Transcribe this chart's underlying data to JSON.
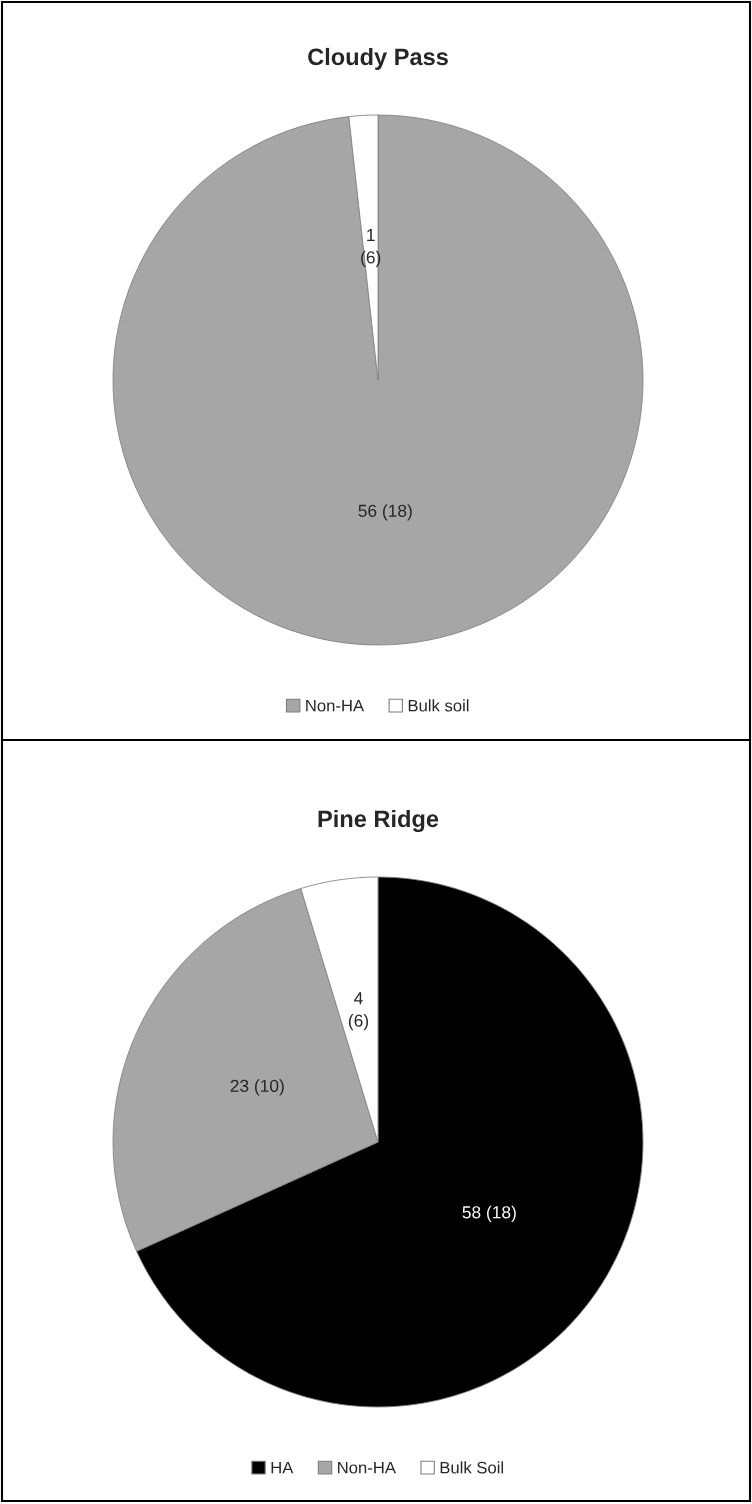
{
  "chart_data": [
    {
      "type": "pie",
      "title": "Cloudy Pass",
      "categories": [
        "Non-HA",
        "Bulk soil"
      ],
      "values": [
        56,
        1
      ],
      "colors": [
        "#a6a6a6",
        "#ffffff"
      ],
      "value_labels": [
        "56 (18)",
        "1\n(6)"
      ],
      "legend": "bottom"
    },
    {
      "type": "pie",
      "title": "Pine Ridge",
      "categories": [
        "HA",
        "Non-HA",
        "Bulk Soil"
      ],
      "values": [
        58,
        23,
        4
      ],
      "colors": [
        "#000000",
        "#a6a6a6",
        "#ffffff"
      ],
      "value_labels": [
        "58 (18)",
        "23 (10)",
        "4\n(6)"
      ],
      "legend": "bottom"
    }
  ]
}
